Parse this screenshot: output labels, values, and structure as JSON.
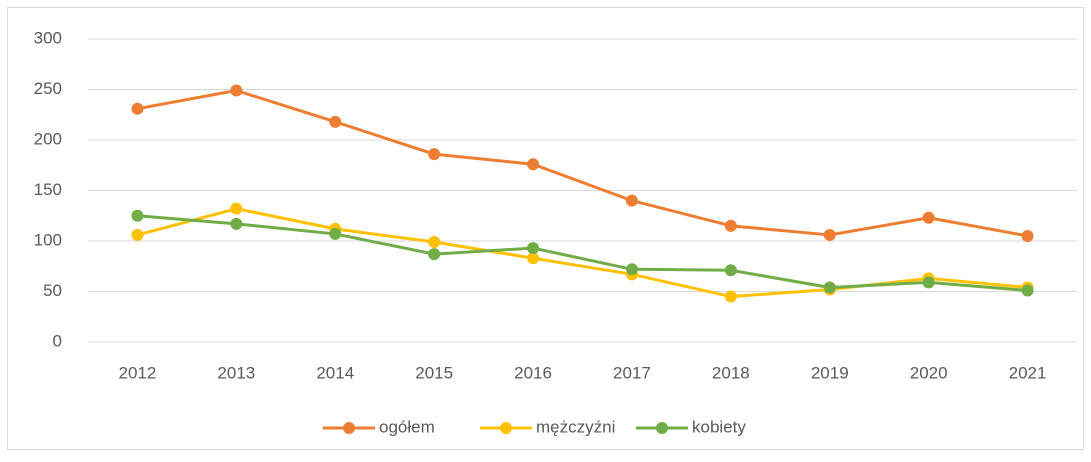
{
  "chart_data": {
    "type": "line",
    "categories": [
      "2012",
      "2013",
      "2014",
      "2015",
      "2016",
      "2017",
      "2018",
      "2019",
      "2020",
      "2021"
    ],
    "series": [
      {
        "name": "ogółem",
        "color": "#ed7d31",
        "values": [
          231,
          249,
          218,
          186,
          176,
          140,
          115,
          106,
          123,
          105
        ]
      },
      {
        "name": "mężczyźni",
        "color": "#ffc000",
        "values": [
          106,
          132,
          112,
          99,
          83,
          67,
          45,
          52,
          63,
          54
        ]
      },
      {
        "name": "kobiety",
        "color": "#70ad47",
        "values": [
          125,
          117,
          107,
          87,
          93,
          72,
          71,
          54,
          59,
          51
        ]
      }
    ],
    "ylim": [
      0,
      300
    ],
    "yticks": [
      0,
      50,
      100,
      150,
      200,
      250,
      300
    ],
    "grid": true,
    "legend": "bottom"
  }
}
